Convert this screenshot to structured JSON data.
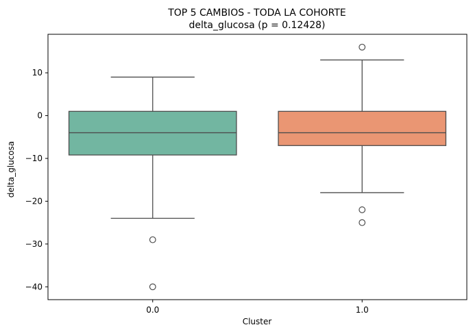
{
  "chart_data": {
    "type": "box",
    "title": "TOP 5 CAMBIOS - TODA LA COHORTE",
    "subtitle": "delta_glucosa (p = 0.12428)",
    "xlabel": "Cluster",
    "ylabel": "delta_glucosa",
    "categories": [
      "0.0",
      "1.0"
    ],
    "ylim": [
      -43,
      19
    ],
    "yticks": [
      10,
      0,
      -10,
      -20,
      -30,
      -40
    ],
    "ytick_labels": [
      "10",
      "0",
      "−10",
      "−20",
      "−30",
      "−40"
    ],
    "grid": false,
    "boxes": [
      {
        "category": "0.0",
        "whisker_low": -24,
        "q1": -9.2,
        "median": -4,
        "q3": 1,
        "whisker_high": 9,
        "outliers": [
          -29,
          -40
        ],
        "color": "#72b6a1"
      },
      {
        "category": "1.0",
        "whisker_low": -18,
        "q1": -7,
        "median": -4,
        "q3": 1,
        "whisker_high": 13,
        "outliers": [
          16,
          -22,
          -25
        ],
        "color": "#ea9673"
      }
    ],
    "line_color": "#4d4d4d"
  }
}
